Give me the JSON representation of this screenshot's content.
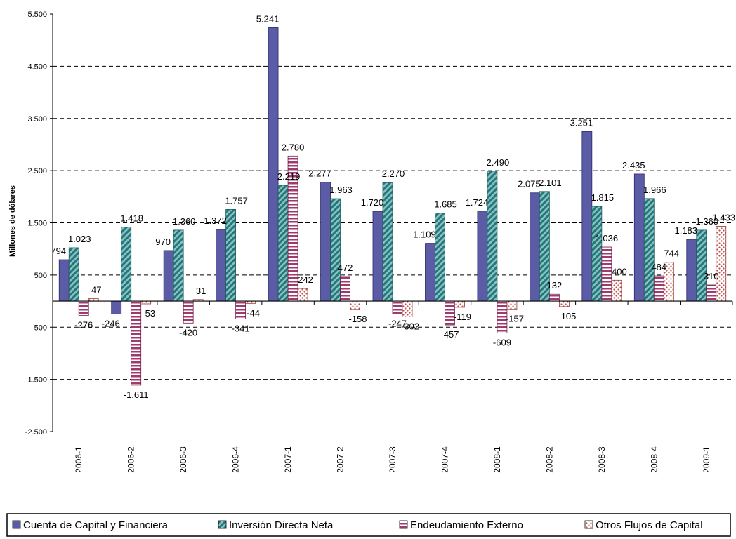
{
  "chart_data": {
    "type": "bar",
    "ylabel": "Millones de dólares",
    "ylim": [
      -2500,
      5500
    ],
    "yticks": [
      5500,
      4500,
      3500,
      2500,
      1500,
      500,
      -500,
      -1500,
      -2500
    ],
    "ytick_labels": [
      "5.500",
      "4.500",
      "3.500",
      "2.500",
      "1.500",
      "500",
      "-500",
      "-1.500",
      "-2.500"
    ],
    "grid": "dashed-horizontal",
    "legend_position": "bottom",
    "categories": [
      "2006-1",
      "2006-2",
      "2006-3",
      "2006-4",
      "2007-1",
      "2007-2",
      "2007-3",
      "2007-4",
      "2008-1",
      "2008-2",
      "2008-3",
      "2008-4",
      "2009-1"
    ],
    "series": [
      {
        "name": "Cuenta de Capital y Financiera",
        "color": "#5b5ba6",
        "pattern": "solid",
        "values": [
          794,
          -246,
          970,
          1372,
          5241,
          2277,
          1720,
          1109,
          1724,
          2075,
          3251,
          2435,
          1183
        ],
        "labels": [
          "794",
          "-246",
          "970",
          "1.372",
          "5.241",
          "2.277",
          "1.720",
          "1.109",
          "1.724",
          "2.075",
          "3.251",
          "2.435",
          "1.183"
        ]
      },
      {
        "name": "Inversión Directa Neta",
        "color": "#2f8c8c",
        "pattern": "diagonal",
        "values": [
          1023,
          1418,
          1360,
          1757,
          2219,
          1963,
          2270,
          1685,
          2490,
          2101,
          1815,
          1966,
          1360
        ],
        "labels": [
          "1.023",
          "1.418",
          "1.360",
          "1.757",
          "2.219",
          "1.963",
          "2.270",
          "1.685",
          "2.490",
          "2.101",
          "1.815",
          "1.966",
          "1.360"
        ]
      },
      {
        "name": "Endeudamiento Externo",
        "color": "#a03a6e",
        "pattern": "horizontal-stripes",
        "values": [
          -276,
          -1611,
          -420,
          -341,
          2780,
          472,
          -247,
          -457,
          -609,
          132,
          1036,
          484,
          310
        ],
        "labels": [
          "-276",
          "-1.611",
          "-420",
          "-341",
          "2.780",
          "472",
          "-247",
          "-457",
          "-609",
          "132",
          "1.036",
          "484",
          "310"
        ]
      },
      {
        "name": "Otros Flujos de Capital",
        "color": "#c0504d",
        "pattern": "dots",
        "values": [
          47,
          -53,
          31,
          -44,
          242,
          -158,
          -302,
          -119,
          -157,
          -105,
          400,
          744,
          1433
        ],
        "labels": [
          "47",
          "-53",
          "31",
          "-44",
          "242",
          "-158",
          "-302",
          "-119",
          "-157",
          "-105",
          "400",
          "744",
          "1.433"
        ]
      }
    ]
  }
}
